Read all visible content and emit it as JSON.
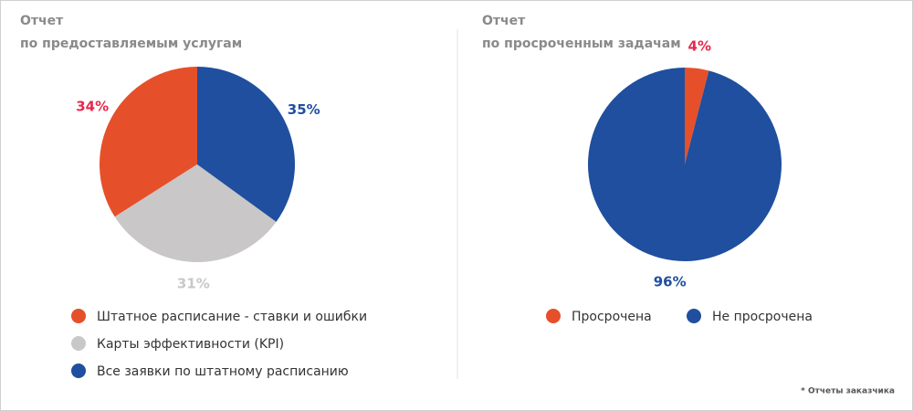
{
  "chart_data": [
    {
      "type": "pie",
      "title": "Отчет",
      "subtitle": "по предоставляемым услугам",
      "categories": [
        "Штатное расписание - ставки и ошибки",
        "Карты эффективности (KPI)",
        "Все заявки по штатному расписанию"
      ],
      "values": [
        34,
        31,
        35
      ],
      "value_labels": [
        "34%",
        "31%",
        "35%"
      ],
      "colors": [
        "#e5502a",
        "#c9c7c7",
        "#1f4f9e"
      ],
      "label_colors": [
        "#e8274b",
        "#c9c7c7",
        "#1f4f9e"
      ],
      "direction": "counterclockwise",
      "legend": "bottom"
    },
    {
      "type": "pie",
      "title": "Отчет",
      "subtitle": "по просроченным задачам",
      "categories": [
        "Просрочена",
        "Не просрочена"
      ],
      "values": [
        4,
        96
      ],
      "value_labels": [
        "4%",
        "96%"
      ],
      "colors": [
        "#e5502a",
        "#1f4f9e"
      ],
      "label_colors": [
        "#e8274b",
        "#1f4f9e"
      ],
      "direction": "clockwise",
      "legend": "bottom"
    }
  ],
  "footnote": "* Отчеты заказчика"
}
